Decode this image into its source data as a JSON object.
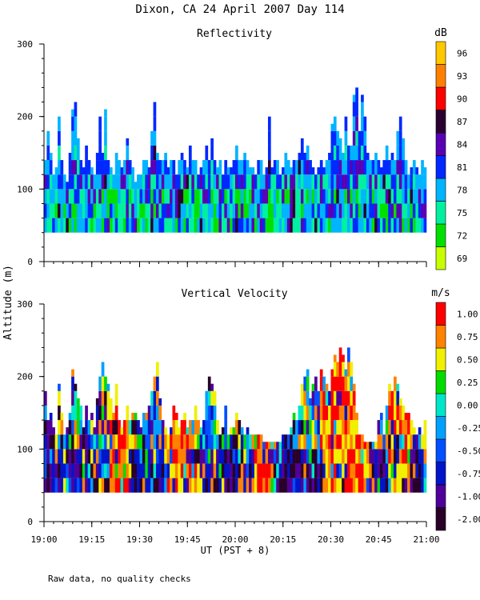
{
  "chart_data": [
    {
      "type": "heatmap",
      "title": "Reflectivity",
      "ylabel": "Altitude (m)",
      "ylim": [
        0,
        300
      ],
      "yticks": [
        "0",
        "100",
        "200",
        "300"
      ],
      "colorbar": {
        "unit": "dB",
        "labels": [
          "69",
          "72",
          "75",
          "78",
          "81",
          "84",
          "87",
          "90",
          "93",
          "96"
        ],
        "colors": [
          "#c8ff00",
          "#00e000",
          "#00f0a0",
          "#00b4ff",
          "#0028ff",
          "#5a00b4",
          "#2a0030",
          "#ff0000",
          "#ff8000",
          "#ffc800"
        ]
      },
      "lower_bound_m": 40,
      "echo_top_m": [
        140,
        180,
        150,
        120,
        130,
        200,
        140,
        120,
        110,
        150,
        210,
        220,
        170,
        140,
        130,
        160,
        140,
        130,
        120,
        150,
        200,
        150,
        210,
        140,
        130,
        120,
        150,
        140,
        130,
        140,
        170,
        140,
        130,
        110,
        120,
        120,
        140,
        140,
        130,
        180,
        220,
        150,
        140,
        140,
        150,
        130,
        140,
        140,
        120,
        140,
        150,
        140,
        130,
        160,
        140,
        140,
        120,
        130,
        140,
        160,
        140,
        170,
        140,
        130,
        140,
        120,
        140,
        130,
        130,
        140,
        160,
        140,
        140,
        150,
        140,
        130,
        130,
        120,
        140,
        140,
        120,
        130,
        200,
        130,
        140,
        140,
        120,
        130,
        150,
        140,
        130,
        140,
        140,
        150,
        170,
        150,
        160,
        140,
        130,
        120,
        130,
        140,
        130,
        140,
        150,
        190,
        200,
        180,
        170,
        150,
        200,
        160,
        160,
        230,
        240,
        180,
        230,
        200,
        150,
        140,
        140,
        150,
        140,
        130,
        140,
        160,
        140,
        150,
        140,
        180,
        200,
        170,
        140,
        120,
        130,
        140,
        130,
        120,
        140,
        130
      ]
    },
    {
      "type": "heatmap",
      "title": "Vertical Velocity",
      "ylabel": "Altitude (m)",
      "ylim": [
        0,
        300
      ],
      "yticks": [
        "0",
        "100",
        "200",
        "300"
      ],
      "colorbar": {
        "unit": "m/s",
        "labels": [
          "-2.00",
          "-1.00",
          "-0.75",
          "-0.50",
          "-0.25",
          "0.00",
          "0.25",
          "0.50",
          "0.75",
          "1.00"
        ],
        "colors": [
          "#280028",
          "#50009a",
          "#0014c8",
          "#0050ff",
          "#00a0ff",
          "#00e6c8",
          "#00dc00",
          "#f0f000",
          "#ff8200",
          "#ff0000"
        ]
      },
      "lower_bound_m": 40,
      "echo_top_m": [
        180,
        140,
        150,
        130,
        120,
        190,
        150,
        120,
        130,
        150,
        210,
        190,
        170,
        160,
        130,
        160,
        140,
        150,
        130,
        170,
        200,
        220,
        200,
        190,
        170,
        150,
        190,
        140,
        130,
        140,
        160,
        140,
        150,
        150,
        140,
        130,
        150,
        150,
        160,
        180,
        200,
        220,
        170,
        140,
        130,
        120,
        130,
        160,
        150,
        130,
        140,
        150,
        130,
        140,
        140,
        160,
        140,
        130,
        140,
        180,
        200,
        190,
        180,
        140,
        120,
        130,
        160,
        120,
        130,
        130,
        150,
        140,
        130,
        120,
        130,
        120,
        120,
        120,
        120,
        120,
        110,
        110,
        110,
        110,
        110,
        110,
        110,
        120,
        120,
        120,
        130,
        150,
        140,
        160,
        190,
        200,
        210,
        170,
        190,
        200,
        180,
        210,
        200,
        190,
        180,
        210,
        230,
        220,
        240,
        230,
        210,
        240,
        220,
        190,
        150,
        120,
        120,
        110,
        110,
        110,
        110,
        110,
        140,
        150,
        120,
        160,
        190,
        180,
        200,
        190,
        170,
        160,
        150,
        150,
        140,
        130,
        120,
        130,
        120,
        140
      ],
      "hot_core_hours": [
        [
          19.33,
          19.45
        ],
        [
          19.65,
          19.8
        ],
        [
          20.1,
          20.18
        ],
        [
          20.45,
          20.7
        ],
        [
          20.8,
          20.92
        ]
      ]
    }
  ],
  "figure": {
    "title": "Dixon, CA 24 April 2007  Day 114",
    "shared_ylabel": "Altitude (m)",
    "xlabel": "UT  (PST + 8)",
    "x_tick_labels": [
      "19:00",
      "19:15",
      "19:30",
      "19:45",
      "20:00",
      "20:15",
      "20:30",
      "20:45",
      "21:00"
    ],
    "x_range_hours": [
      19.0,
      21.0
    ],
    "footnote": "Raw data, no quality checks"
  }
}
